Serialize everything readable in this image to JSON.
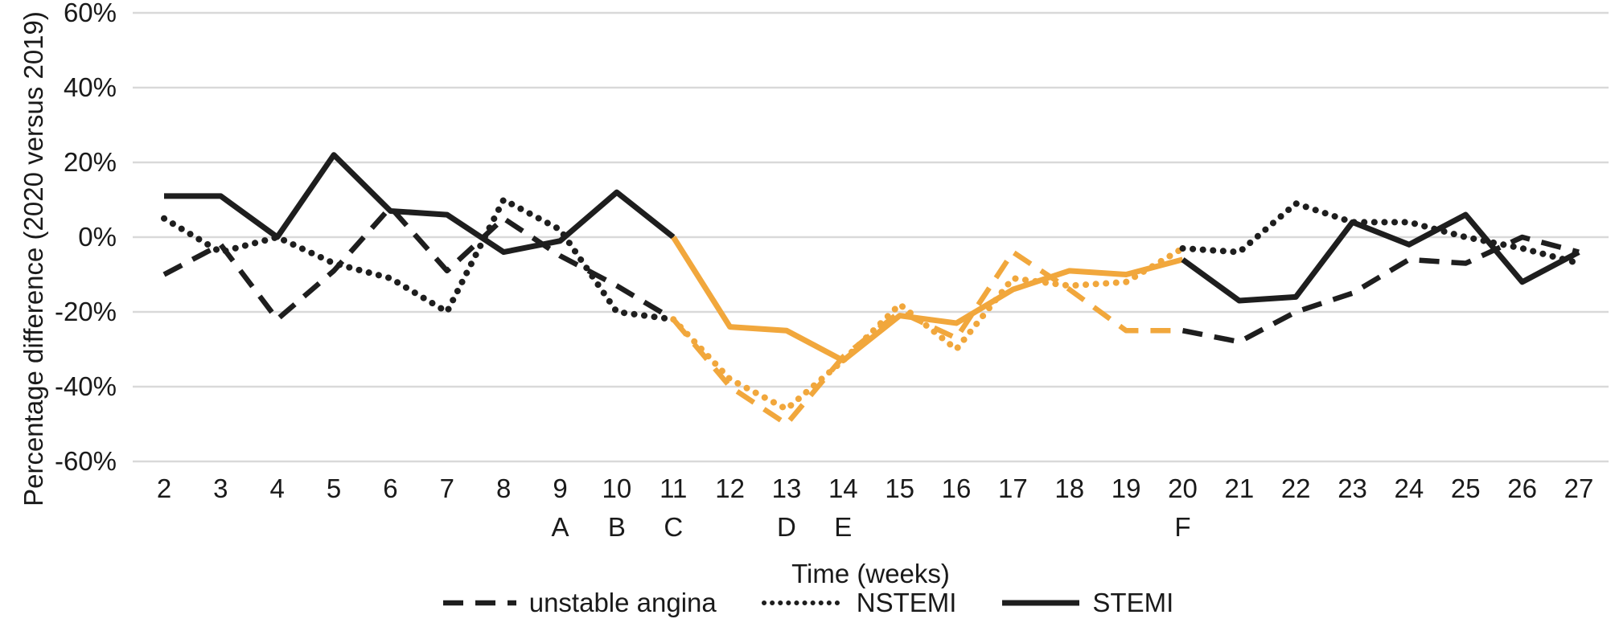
{
  "figure": {
    "y_axis_title": "Percentage difference (2020 versus 2019)",
    "x_axis_title": "Time (weeks)"
  },
  "legend": {
    "position": "bottom",
    "items": [
      {
        "label": "unstable angina",
        "style": "dashed"
      },
      {
        "label": "NSTEMI",
        "style": "dotted"
      },
      {
        "label": "STEMI",
        "style": "solid"
      }
    ]
  },
  "colors": {
    "line_black": "#1e1e1e",
    "highlight_orange": "#F1A73C",
    "gridline": "#D9D9D9",
    "background": "#FFFFFF"
  },
  "chart_data": {
    "type": "line",
    "title": "",
    "xlabel": "Time (weeks)",
    "ylabel": "Percentage difference (2020 versus 2019)",
    "x": [
      2,
      3,
      4,
      5,
      6,
      7,
      8,
      9,
      10,
      11,
      12,
      13,
      14,
      15,
      16,
      17,
      18,
      19,
      20,
      21,
      22,
      23,
      24,
      25,
      26,
      27
    ],
    "series": [
      {
        "name": "unstable angina",
        "style": "dashed",
        "values": [
          -10,
          -2,
          -22,
          -9,
          8,
          -9,
          5,
          -5,
          -13,
          -22,
          -40,
          -50,
          -32,
          -20,
          -27,
          -4,
          -14,
          -25,
          -25,
          -28,
          -20,
          -15,
          -6,
          -7,
          0,
          -4
        ]
      },
      {
        "name": "NSTEMI",
        "style": "dotted",
        "values": [
          5,
          -4,
          0,
          -7,
          -11,
          -20,
          10,
          2,
          -20,
          -22,
          -38,
          -46,
          -33,
          -18,
          -30,
          -11,
          -13,
          -12,
          -3,
          -4,
          9,
          4,
          4,
          0,
          -3,
          -7
        ]
      },
      {
        "name": "STEMI",
        "style": "solid",
        "values": [
          11,
          11,
          0,
          22,
          7,
          6,
          -4,
          -1,
          12,
          0,
          -24,
          -25,
          -33,
          -21,
          -23,
          -14,
          -9,
          -10,
          -6,
          -17,
          -16,
          4,
          -2,
          6,
          -12,
          -4
        ]
      }
    ],
    "highlight": {
      "from_week": 11,
      "to_week": 20,
      "color": "#F1A73C"
    },
    "markers": [
      {
        "week": 9,
        "label": "A"
      },
      {
        "week": 10,
        "label": "B"
      },
      {
        "week": 11,
        "label": "C"
      },
      {
        "week": 13,
        "label": "D"
      },
      {
        "week": 14,
        "label": "E"
      },
      {
        "week": 20,
        "label": "F"
      }
    ],
    "ytick_values": [
      60,
      40,
      20,
      0,
      -20,
      -40,
      -60
    ],
    "ytick_labels": [
      "60%",
      "40%",
      "20%",
      "0%",
      "-20%",
      "-40%",
      "-60%"
    ],
    "ylim": [
      -60,
      60
    ],
    "grid": "horizontal",
    "legend_position": "bottom"
  }
}
